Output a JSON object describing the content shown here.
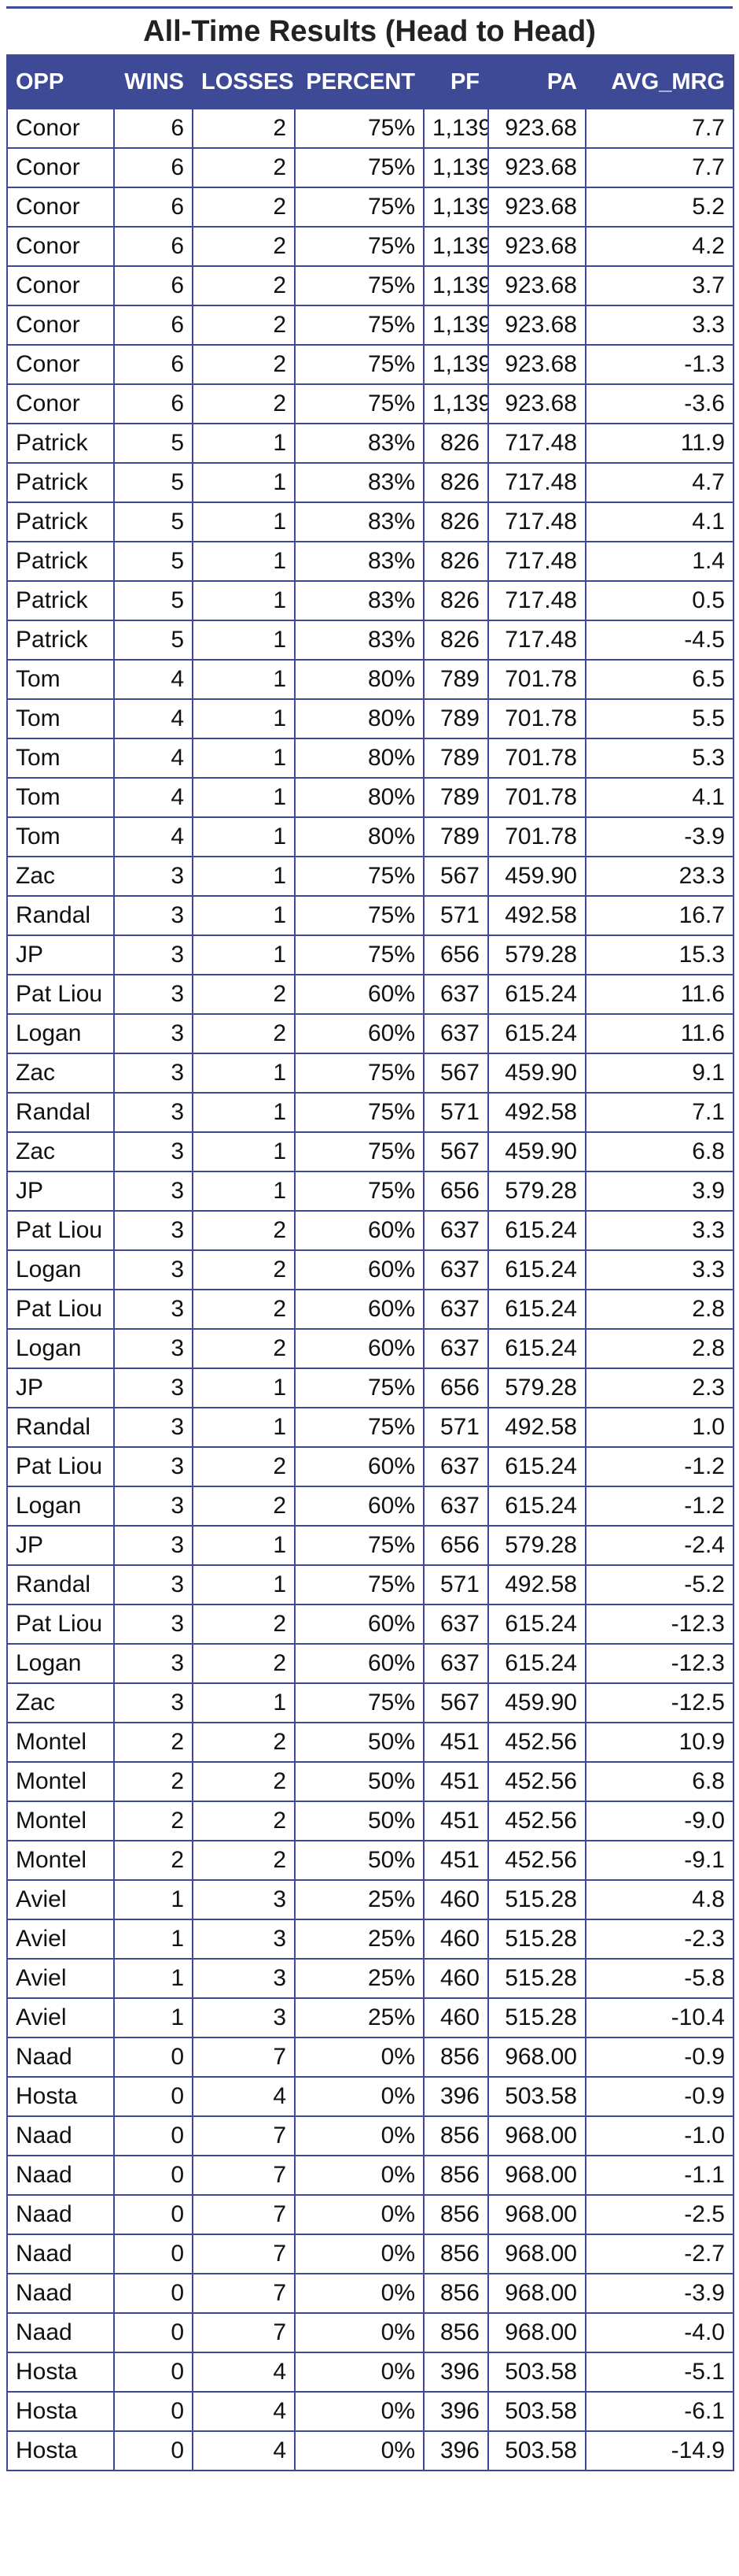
{
  "title": "All-Time Results (Head to Head)",
  "colors": {
    "header_bg": "#3f4a96",
    "border": "#3f4a96",
    "header_text": "#ffffff"
  },
  "columns": [
    "OPP",
    "WINS",
    "LOSSES",
    "PERCENT",
    "PF",
    "PA",
    "AVG_MRG"
  ],
  "rows": [
    [
      "Conor",
      "6",
      "2",
      "75%",
      "1,139",
      "923.68",
      "7.7"
    ],
    [
      "Conor",
      "6",
      "2",
      "75%",
      "1,139",
      "923.68",
      "7.7"
    ],
    [
      "Conor",
      "6",
      "2",
      "75%",
      "1,139",
      "923.68",
      "5.2"
    ],
    [
      "Conor",
      "6",
      "2",
      "75%",
      "1,139",
      "923.68",
      "4.2"
    ],
    [
      "Conor",
      "6",
      "2",
      "75%",
      "1,139",
      "923.68",
      "3.7"
    ],
    [
      "Conor",
      "6",
      "2",
      "75%",
      "1,139",
      "923.68",
      "3.3"
    ],
    [
      "Conor",
      "6",
      "2",
      "75%",
      "1,139",
      "923.68",
      "-1.3"
    ],
    [
      "Conor",
      "6",
      "2",
      "75%",
      "1,139",
      "923.68",
      "-3.6"
    ],
    [
      "Patrick",
      "5",
      "1",
      "83%",
      "826",
      "717.48",
      "11.9"
    ],
    [
      "Patrick",
      "5",
      "1",
      "83%",
      "826",
      "717.48",
      "4.7"
    ],
    [
      "Patrick",
      "5",
      "1",
      "83%",
      "826",
      "717.48",
      "4.1"
    ],
    [
      "Patrick",
      "5",
      "1",
      "83%",
      "826",
      "717.48",
      "1.4"
    ],
    [
      "Patrick",
      "5",
      "1",
      "83%",
      "826",
      "717.48",
      "0.5"
    ],
    [
      "Patrick",
      "5",
      "1",
      "83%",
      "826",
      "717.48",
      "-4.5"
    ],
    [
      "Tom",
      "4",
      "1",
      "80%",
      "789",
      "701.78",
      "6.5"
    ],
    [
      "Tom",
      "4",
      "1",
      "80%",
      "789",
      "701.78",
      "5.5"
    ],
    [
      "Tom",
      "4",
      "1",
      "80%",
      "789",
      "701.78",
      "5.3"
    ],
    [
      "Tom",
      "4",
      "1",
      "80%",
      "789",
      "701.78",
      "4.1"
    ],
    [
      "Tom",
      "4",
      "1",
      "80%",
      "789",
      "701.78",
      "-3.9"
    ],
    [
      "Zac",
      "3",
      "1",
      "75%",
      "567",
      "459.90",
      "23.3"
    ],
    [
      "Randal",
      "3",
      "1",
      "75%",
      "571",
      "492.58",
      "16.7"
    ],
    [
      "JP",
      "3",
      "1",
      "75%",
      "656",
      "579.28",
      "15.3"
    ],
    [
      "Pat Liou",
      "3",
      "2",
      "60%",
      "637",
      "615.24",
      "11.6"
    ],
    [
      "Logan",
      "3",
      "2",
      "60%",
      "637",
      "615.24",
      "11.6"
    ],
    [
      "Zac",
      "3",
      "1",
      "75%",
      "567",
      "459.90",
      "9.1"
    ],
    [
      "Randal",
      "3",
      "1",
      "75%",
      "571",
      "492.58",
      "7.1"
    ],
    [
      "Zac",
      "3",
      "1",
      "75%",
      "567",
      "459.90",
      "6.8"
    ],
    [
      "JP",
      "3",
      "1",
      "75%",
      "656",
      "579.28",
      "3.9"
    ],
    [
      "Pat Liou",
      "3",
      "2",
      "60%",
      "637",
      "615.24",
      "3.3"
    ],
    [
      "Logan",
      "3",
      "2",
      "60%",
      "637",
      "615.24",
      "3.3"
    ],
    [
      "Pat Liou",
      "3",
      "2",
      "60%",
      "637",
      "615.24",
      "2.8"
    ],
    [
      "Logan",
      "3",
      "2",
      "60%",
      "637",
      "615.24",
      "2.8"
    ],
    [
      "JP",
      "3",
      "1",
      "75%",
      "656",
      "579.28",
      "2.3"
    ],
    [
      "Randal",
      "3",
      "1",
      "75%",
      "571",
      "492.58",
      "1.0"
    ],
    [
      "Pat Liou",
      "3",
      "2",
      "60%",
      "637",
      "615.24",
      "-1.2"
    ],
    [
      "Logan",
      "3",
      "2",
      "60%",
      "637",
      "615.24",
      "-1.2"
    ],
    [
      "JP",
      "3",
      "1",
      "75%",
      "656",
      "579.28",
      "-2.4"
    ],
    [
      "Randal",
      "3",
      "1",
      "75%",
      "571",
      "492.58",
      "-5.2"
    ],
    [
      "Pat Liou",
      "3",
      "2",
      "60%",
      "637",
      "615.24",
      "-12.3"
    ],
    [
      "Logan",
      "3",
      "2",
      "60%",
      "637",
      "615.24",
      "-12.3"
    ],
    [
      "Zac",
      "3",
      "1",
      "75%",
      "567",
      "459.90",
      "-12.5"
    ],
    [
      "Montel",
      "2",
      "2",
      "50%",
      "451",
      "452.56",
      "10.9"
    ],
    [
      "Montel",
      "2",
      "2",
      "50%",
      "451",
      "452.56",
      "6.8"
    ],
    [
      "Montel",
      "2",
      "2",
      "50%",
      "451",
      "452.56",
      "-9.0"
    ],
    [
      "Montel",
      "2",
      "2",
      "50%",
      "451",
      "452.56",
      "-9.1"
    ],
    [
      "Aviel",
      "1",
      "3",
      "25%",
      "460",
      "515.28",
      "4.8"
    ],
    [
      "Aviel",
      "1",
      "3",
      "25%",
      "460",
      "515.28",
      "-2.3"
    ],
    [
      "Aviel",
      "1",
      "3",
      "25%",
      "460",
      "515.28",
      "-5.8"
    ],
    [
      "Aviel",
      "1",
      "3",
      "25%",
      "460",
      "515.28",
      "-10.4"
    ],
    [
      "Naad",
      "0",
      "7",
      "0%",
      "856",
      "968.00",
      "-0.9"
    ],
    [
      "Hosta",
      "0",
      "4",
      "0%",
      "396",
      "503.58",
      "-0.9"
    ],
    [
      "Naad",
      "0",
      "7",
      "0%",
      "856",
      "968.00",
      "-1.0"
    ],
    [
      "Naad",
      "0",
      "7",
      "0%",
      "856",
      "968.00",
      "-1.1"
    ],
    [
      "Naad",
      "0",
      "7",
      "0%",
      "856",
      "968.00",
      "-2.5"
    ],
    [
      "Naad",
      "0",
      "7",
      "0%",
      "856",
      "968.00",
      "-2.7"
    ],
    [
      "Naad",
      "0",
      "7",
      "0%",
      "856",
      "968.00",
      "-3.9"
    ],
    [
      "Naad",
      "0",
      "7",
      "0%",
      "856",
      "968.00",
      "-4.0"
    ],
    [
      "Hosta",
      "0",
      "4",
      "0%",
      "396",
      "503.58",
      "-5.1"
    ],
    [
      "Hosta",
      "0",
      "4",
      "0%",
      "396",
      "503.58",
      "-6.1"
    ],
    [
      "Hosta",
      "0",
      "4",
      "0%",
      "396",
      "503.58",
      "-14.9"
    ]
  ]
}
